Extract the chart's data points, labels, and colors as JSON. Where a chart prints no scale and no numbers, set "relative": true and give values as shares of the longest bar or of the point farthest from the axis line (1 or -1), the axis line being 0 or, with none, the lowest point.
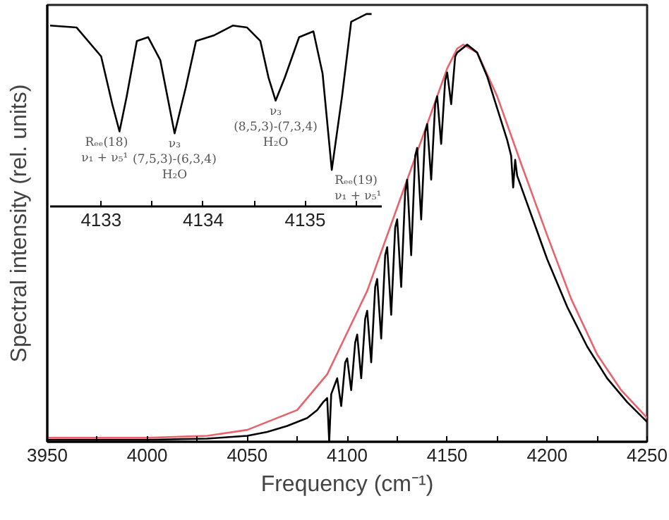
{
  "chart_data": [
    {
      "type": "line",
      "relative": true,
      "xlabel": "Frequency (cm⁻¹)",
      "ylabel": "Spectral intensity (rel. units)",
      "xlim": [
        3950,
        4250
      ],
      "xticks": [
        3950,
        {
          "value": 3975,
          "label": null
        },
        4000,
        {
          "value": 4025,
          "label": null
        },
        4050,
        {
          "value": 4075,
          "label": null
        },
        4100,
        {
          "value": 4125,
          "label": null
        },
        4150,
        {
          "value": 4175,
          "label": null
        },
        4200,
        {
          "value": 4225,
          "label": null
        },
        4250
      ],
      "tick_labels": "x",
      "grid": false,
      "series": [
        {
          "color": "#e8636b",
          "x": [
            3950,
            4000,
            4030,
            4050,
            4075,
            4090,
            4100,
            4110,
            4125,
            4140,
            4150,
            4155,
            4158,
            4165,
            4175,
            4187,
            4200,
            4212,
            4225,
            4237,
            4250
          ],
          "values": [
            0.01,
            0.01,
            0.015,
            0.03,
            0.08,
            0.17,
            0.275,
            0.38,
            0.59,
            0.8,
            0.94,
            0.99,
            1.0,
            0.98,
            0.87,
            0.7,
            0.52,
            0.36,
            0.22,
            0.13,
            0.06
          ]
        },
        {
          "color": "#000000",
          "x": [
            3950,
            4000,
            4030,
            4050,
            4060,
            4070,
            4080,
            4085,
            4088,
            4090,
            4091,
            4092,
            4095,
            4097,
            4099,
            4100,
            4102,
            4104,
            4105,
            4107,
            4109,
            4110,
            4112,
            4114,
            4115,
            4117,
            4119,
            4120,
            4122,
            4124,
            4125,
            4127,
            4129,
            4130,
            4132,
            4134,
            4135,
            4137,
            4139,
            4140,
            4142,
            4144,
            4145,
            4147,
            4149,
            4150,
            4152,
            4154,
            4155,
            4160,
            4165,
            4170,
            4175,
            4180,
            4182,
            4183,
            4184,
            4185,
            4190,
            4195,
            4200,
            4210,
            4220,
            4230,
            4240,
            4250
          ],
          "values": [
            0.005,
            0.005,
            0.008,
            0.015,
            0.025,
            0.04,
            0.06,
            0.08,
            0.1,
            0.11,
            0.0,
            0.12,
            0.16,
            0.09,
            0.2,
            0.21,
            0.13,
            0.25,
            0.27,
            0.16,
            0.31,
            0.33,
            0.2,
            0.39,
            0.41,
            0.26,
            0.47,
            0.49,
            0.32,
            0.54,
            0.56,
            0.39,
            0.63,
            0.66,
            0.47,
            0.72,
            0.74,
            0.56,
            0.78,
            0.8,
            0.66,
            0.85,
            0.87,
            0.75,
            0.91,
            0.93,
            0.85,
            0.97,
            0.98,
            1.0,
            0.98,
            0.92,
            0.84,
            0.76,
            0.72,
            0.64,
            0.71,
            0.67,
            0.6,
            0.53,
            0.46,
            0.34,
            0.24,
            0.16,
            0.1,
            0.05
          ]
        }
      ]
    },
    {
      "type": "line",
      "relative": true,
      "xlim": [
        4132.5,
        4135.75
      ],
      "xticks": [
        4133,
        {
          "value": 4133.5,
          "label": null
        },
        4134,
        {
          "value": 4134.5,
          "label": null
        },
        4135,
        {
          "value": 4135.5,
          "label": null
        }
      ],
      "tick_labels": "x",
      "grid": false,
      "series": [
        {
          "color": "#000000",
          "x": [
            4132.5,
            4132.76,
            4133.0,
            4133.11,
            4133.18,
            4133.25,
            4133.35,
            4133.46,
            4133.58,
            4133.72,
            4133.83,
            4133.93,
            4134.11,
            4134.29,
            4134.43,
            4134.56,
            4134.64,
            4134.71,
            4134.8,
            4134.94,
            4135.08,
            4135.17,
            4135.26,
            4135.36,
            4135.45,
            4135.6,
            4135.65
          ],
          "values": [
            0.94,
            0.93,
            0.78,
            0.53,
            0.39,
            0.57,
            0.86,
            0.88,
            0.76,
            0.38,
            0.62,
            0.86,
            0.89,
            0.94,
            0.93,
            0.86,
            0.67,
            0.55,
            0.67,
            0.88,
            0.91,
            0.69,
            0.19,
            0.57,
            0.96,
            1.0,
            1.0
          ]
        }
      ],
      "annotations": [
        {
          "text": "Rₑₑ(18)\nν₁ + ν₅¹",
          "x": 4133.18,
          "y": 0.39
        },
        {
          "text": "ν₃\n(7,5,3)-(6,3,4)\nH₂O",
          "x": 4133.72,
          "y": 0.38
        },
        {
          "text": "ν₃\n(8,5,3)-(7,3,4)\nH₂O",
          "x": 4134.71,
          "y": 0.55
        },
        {
          "text": "Rₑₑ(19)\nν₁ + ν₅¹",
          "x": 4135.26,
          "y": 0.19
        }
      ]
    }
  ]
}
